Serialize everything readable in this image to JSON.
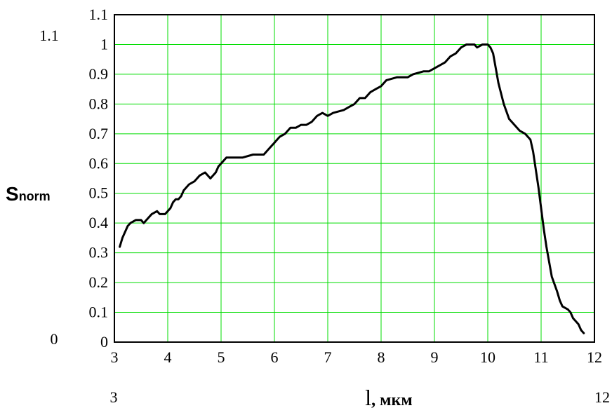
{
  "chart_data": {
    "type": "line",
    "title": "",
    "xlabel_symbol": "l",
    "xlabel_unit": ", мкм",
    "ylabel_main": "S",
    "ylabel_sub": "norm",
    "xlim": [
      3,
      12
    ],
    "ylim": [
      0,
      1.1
    ],
    "x_ticks": [
      "3",
      "4",
      "5",
      "6",
      "7",
      "8",
      "9",
      "10",
      "11",
      "12"
    ],
    "y_ticks": [
      "0",
      "0.1",
      "0.2",
      "0.3",
      "0.4",
      "0.5",
      "0.6",
      "0.7",
      "0.8",
      "0.9",
      "1",
      "1.1"
    ],
    "edge_labels": {
      "x_min": "3",
      "x_max": "12",
      "y_min": "0",
      "y_max": "1.1"
    },
    "grid": true,
    "grid_color": "#00dd00",
    "line_color": "#000000",
    "series": [
      {
        "x": [
          3.1,
          3.15,
          3.2,
          3.25,
          3.3,
          3.4,
          3.5,
          3.55,
          3.6,
          3.7,
          3.8,
          3.85,
          3.9,
          3.95,
          4.0,
          4.05,
          4.1,
          4.15,
          4.2,
          4.25,
          4.3,
          4.4,
          4.5,
          4.6,
          4.7,
          4.75,
          4.8,
          4.85,
          4.9,
          4.95,
          5.0,
          5.05,
          5.1,
          5.2,
          5.4,
          5.6,
          5.8,
          5.9,
          6.0,
          6.05,
          6.1,
          6.2,
          6.3,
          6.4,
          6.5,
          6.6,
          6.7,
          6.8,
          6.9,
          7.0,
          7.1,
          7.3,
          7.4,
          7.5,
          7.6,
          7.7,
          7.8,
          7.9,
          8.0,
          8.1,
          8.3,
          8.4,
          8.5,
          8.6,
          8.8,
          8.9,
          9.0,
          9.1,
          9.2,
          9.3,
          9.4,
          9.5,
          9.6,
          9.7,
          9.75,
          9.8,
          9.9,
          9.95,
          10.0,
          10.05,
          10.1,
          10.15,
          10.2,
          10.3,
          10.4,
          10.5,
          10.6,
          10.7,
          10.8,
          10.85,
          10.9,
          10.95,
          11.0,
          11.05,
          11.1,
          11.15,
          11.2,
          11.3,
          11.35,
          11.4,
          11.5,
          11.55,
          11.6,
          11.7,
          11.75,
          11.8
        ],
        "y": [
          0.32,
          0.35,
          0.37,
          0.39,
          0.4,
          0.41,
          0.41,
          0.4,
          0.41,
          0.43,
          0.44,
          0.43,
          0.43,
          0.43,
          0.44,
          0.45,
          0.47,
          0.48,
          0.48,
          0.49,
          0.51,
          0.53,
          0.54,
          0.56,
          0.57,
          0.56,
          0.55,
          0.56,
          0.57,
          0.59,
          0.6,
          0.61,
          0.62,
          0.62,
          0.62,
          0.63,
          0.63,
          0.65,
          0.67,
          0.68,
          0.69,
          0.7,
          0.72,
          0.72,
          0.73,
          0.73,
          0.74,
          0.76,
          0.77,
          0.76,
          0.77,
          0.78,
          0.79,
          0.8,
          0.82,
          0.82,
          0.84,
          0.85,
          0.86,
          0.88,
          0.89,
          0.89,
          0.89,
          0.9,
          0.91,
          0.91,
          0.92,
          0.93,
          0.94,
          0.96,
          0.97,
          0.99,
          1.0,
          1.0,
          1.0,
          0.99,
          1.0,
          1.0,
          1.0,
          0.99,
          0.97,
          0.92,
          0.87,
          0.8,
          0.75,
          0.73,
          0.71,
          0.7,
          0.68,
          0.64,
          0.58,
          0.52,
          0.45,
          0.38,
          0.32,
          0.27,
          0.22,
          0.17,
          0.14,
          0.12,
          0.11,
          0.1,
          0.08,
          0.06,
          0.04,
          0.03
        ]
      }
    ]
  }
}
